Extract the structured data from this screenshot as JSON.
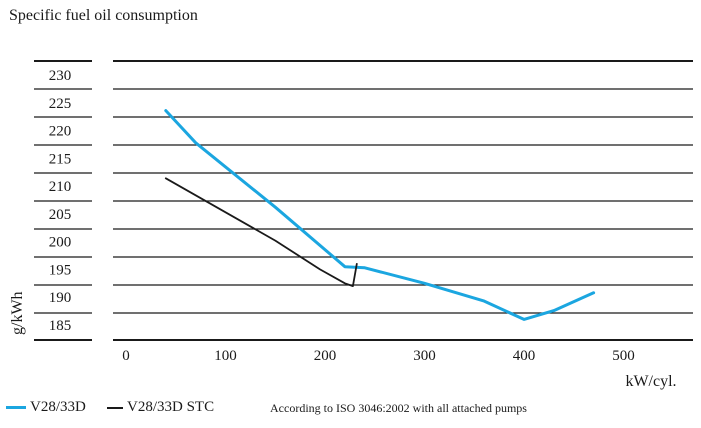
{
  "chart_data": {
    "type": "line",
    "title": "Specific fuel oil consumption",
    "xlabel": "kW/cyl.",
    "ylabel": "g/kWh",
    "xlim": [
      0,
      570
    ],
    "ylim": [
      182,
      232
    ],
    "x_ticks": [
      0,
      100,
      200,
      300,
      400,
      500
    ],
    "y_ticks": [
      185,
      190,
      195,
      200,
      205,
      210,
      215,
      220,
      225,
      230
    ],
    "grid": "horizontal",
    "legend_position": "bottom-left",
    "note": "According to ISO 3046:2002 with all attached pumps",
    "series": [
      {
        "name": "V28/33D",
        "color": "#1ba6e0",
        "points": [
          [
            40,
            223.6
          ],
          [
            70,
            217.8
          ],
          [
            150,
            206.2
          ],
          [
            220,
            195.5
          ],
          [
            240,
            195.3
          ],
          [
            300,
            192.5
          ],
          [
            360,
            189.3
          ],
          [
            400,
            186.0
          ],
          [
            430,
            187.6
          ],
          [
            470,
            190.8
          ]
        ]
      },
      {
        "name": "V28/33D STC",
        "color": "#1a1a1a",
        "points": [
          [
            40,
            211.4
          ],
          [
            150,
            200.2
          ],
          [
            195,
            195.0
          ],
          [
            220,
            192.5
          ],
          [
            228,
            192.0
          ],
          [
            232,
            196.0
          ]
        ]
      }
    ]
  }
}
